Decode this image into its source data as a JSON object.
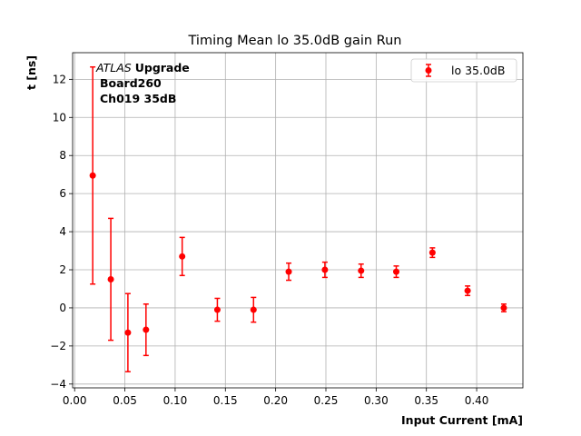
{
  "chart_data": {
    "type": "scatter",
    "title": "Timing Mean lo 35.0dB gain Run",
    "xlabel": "Input Current [mA]",
    "ylabel": "t [ns]",
    "xlim": [
      -0.002,
      0.446
    ],
    "ylim": [
      -4.2,
      13.4
    ],
    "xticks": [
      0.0,
      0.05,
      0.1,
      0.15,
      0.2,
      0.25,
      0.3,
      0.35,
      0.4
    ],
    "xtick_labels": [
      "0.00",
      "0.05",
      "0.10",
      "0.15",
      "0.20",
      "0.25",
      "0.30",
      "0.35",
      "0.40"
    ],
    "yticks": [
      -4,
      -2,
      0,
      2,
      4,
      6,
      8,
      10,
      12
    ],
    "ytick_labels": [
      "−4",
      "−2",
      "0",
      "2",
      "4",
      "6",
      "8",
      "10",
      "12"
    ],
    "grid": true,
    "legend_position": "top-right",
    "series": [
      {
        "name": "lo 35.0dB",
        "color": "#ff0000",
        "marker": "circle",
        "x": [
          0.018,
          0.036,
          0.053,
          0.071,
          0.107,
          0.142,
          0.178,
          0.213,
          0.249,
          0.285,
          0.32,
          0.356,
          0.391,
          0.427
        ],
        "y": [
          6.95,
          1.5,
          -1.3,
          -1.15,
          2.7,
          -0.1,
          -0.1,
          1.9,
          2.0,
          1.95,
          1.9,
          2.9,
          0.9,
          0.0
        ],
        "yerr": [
          5.7,
          3.2,
          2.05,
          1.35,
          1.0,
          0.6,
          0.65,
          0.45,
          0.4,
          0.35,
          0.3,
          0.25,
          0.25,
          0.2
        ]
      }
    ],
    "annotation": {
      "line1_italic": "ATLAS",
      "line1_bold": "Upgrade",
      "line2": "Board260",
      "line3": "Ch019 35dB"
    }
  }
}
